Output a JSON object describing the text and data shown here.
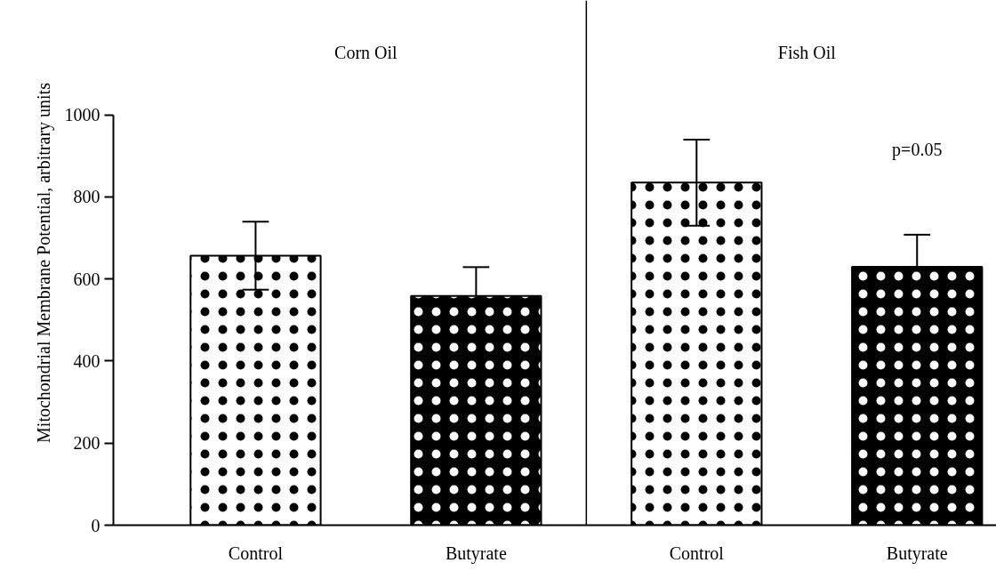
{
  "chart_data": {
    "type": "bar",
    "ylabel": "Mitochondrial Membrane Potential, arbitrary units",
    "categories": [
      "Control",
      "Butyrate",
      "Control",
      "Butyrate"
    ],
    "values": [
      657,
      559,
      835,
      630
    ],
    "colors": [
      "#ffffff",
      "#000000",
      "#ffffff",
      "#000000"
    ],
    "errors": [
      [
        574,
        740
      ],
      [
        559,
        629
      ],
      [
        730,
        940
      ],
      [
        630,
        708
      ]
    ],
    "ylim": [
      0,
      1000
    ],
    "yticks": [
      0,
      200,
      400,
      600,
      800,
      1000
    ],
    "annotations": [
      "Corn Oil",
      "Fish Oil",
      "p=0.05"
    ],
    "grid": false
  }
}
